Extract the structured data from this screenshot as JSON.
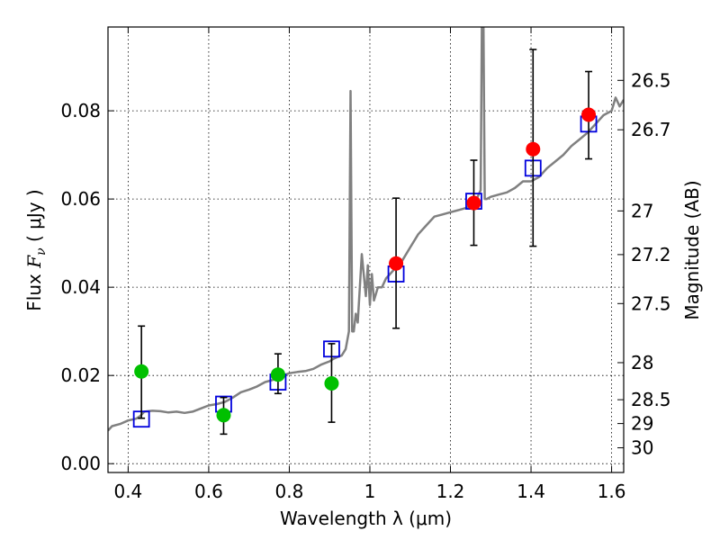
{
  "chart_data": {
    "type": "scatter",
    "xlabel": "Wavelength  λ (μm)",
    "ylabel": "Flux  F_ν  ( μJy )",
    "ylabel_parts": {
      "prefix": "Flux  ",
      "symbol": "F",
      "subscript": "ν",
      "suffix": "  ( μJy )"
    },
    "y2label": "Magnitude (AB)",
    "xlim": [
      0.35,
      1.63
    ],
    "ylim": [
      -0.002,
      0.099
    ],
    "grid": true,
    "x_ticks": [
      0.4,
      0.6,
      0.8,
      1.0,
      1.2,
      1.4,
      1.6
    ],
    "x_tick_labels": [
      "0.4",
      "0.6",
      "0.8",
      "1",
      "1.2",
      "1.4",
      "1.6"
    ],
    "y_ticks": [
      0.0,
      0.02,
      0.04,
      0.06,
      0.08
    ],
    "y_tick_labels": [
      "0.00",
      "0.02",
      "0.04",
      "0.06",
      "0.08"
    ],
    "y2_ticks": [
      {
        "flux": 0.0869,
        "label": "26.5"
      },
      {
        "flux": 0.0757,
        "label": "26.7"
      },
      {
        "flux": 0.0573,
        "label": "27"
      },
      {
        "flux": 0.0474,
        "label": "27.2"
      },
      {
        "flux": 0.0363,
        "label": "27.5"
      },
      {
        "flux": 0.0229,
        "label": "28"
      },
      {
        "flux": 0.0145,
        "label": "28.5"
      },
      {
        "flux": 0.0091,
        "label": "29"
      },
      {
        "flux": 0.0036,
        "label": "30"
      }
    ],
    "series": [
      {
        "kind": "line",
        "color": "#808080",
        "x": [
          0.35,
          0.36,
          0.38,
          0.4,
          0.42,
          0.43,
          0.44,
          0.46,
          0.48,
          0.5,
          0.52,
          0.54,
          0.56,
          0.58,
          0.6,
          0.62,
          0.64,
          0.66,
          0.68,
          0.7,
          0.72,
          0.74,
          0.76,
          0.78,
          0.8,
          0.82,
          0.84,
          0.86,
          0.88,
          0.9,
          0.91,
          0.92,
          0.93,
          0.94,
          0.948,
          0.952,
          0.956,
          0.96,
          0.965,
          0.97,
          0.98,
          0.99,
          0.995,
          1.0,
          1.005,
          1.01,
          1.02,
          1.03,
          1.04,
          1.05,
          1.06,
          1.07,
          1.08,
          1.1,
          1.12,
          1.14,
          1.16,
          1.18,
          1.2,
          1.22,
          1.24,
          1.26,
          1.27,
          1.275,
          1.278,
          1.28,
          1.282,
          1.285,
          1.29,
          1.3,
          1.32,
          1.34,
          1.36,
          1.38,
          1.4,
          1.42,
          1.44,
          1.46,
          1.48,
          1.5,
          1.52,
          1.54,
          1.56,
          1.58,
          1.6,
          1.61,
          1.62,
          1.63
        ],
        "y": [
          0.0075,
          0.0085,
          0.009,
          0.0098,
          0.0102,
          0.0108,
          0.0118,
          0.012,
          0.0119,
          0.0116,
          0.0118,
          0.0115,
          0.0118,
          0.0125,
          0.0132,
          0.0135,
          0.014,
          0.015,
          0.0162,
          0.0168,
          0.0175,
          0.0185,
          0.019,
          0.0198,
          0.0205,
          0.0208,
          0.021,
          0.0215,
          0.0225,
          0.0232,
          0.0238,
          0.0242,
          0.0245,
          0.026,
          0.03,
          0.0845,
          0.03,
          0.03,
          0.034,
          0.032,
          0.0475,
          0.038,
          0.045,
          0.036,
          0.043,
          0.037,
          0.04,
          0.04,
          0.042,
          0.043,
          0.044,
          0.045,
          0.046,
          0.049,
          0.052,
          0.054,
          0.056,
          0.0565,
          0.057,
          0.0575,
          0.058,
          0.059,
          0.061,
          0.062,
          0.099,
          0.099,
          0.099,
          0.06,
          0.06,
          0.0605,
          0.061,
          0.0615,
          0.0625,
          0.064,
          0.064,
          0.065,
          0.067,
          0.0685,
          0.07,
          0.072,
          0.0735,
          0.075,
          0.077,
          0.079,
          0.08,
          0.083,
          0.081,
          0.0825
        ]
      },
      {
        "kind": "markers",
        "marker": "square",
        "color": "#0000dd",
        "x": [
          0.433,
          0.637,
          0.772,
          0.905,
          1.065,
          1.258,
          1.405,
          1.543
        ],
        "y": [
          0.0101,
          0.0135,
          0.0185,
          0.026,
          0.043,
          0.0595,
          0.067,
          0.077
        ]
      },
      {
        "kind": "errorbar",
        "marker": "circle",
        "x": [
          0.433,
          0.637,
          0.772,
          0.905,
          1.065,
          1.258,
          1.405,
          1.543
        ],
        "y": [
          0.0209,
          0.011,
          0.0202,
          0.0182,
          0.0454,
          0.0591,
          0.0713,
          0.0791
        ],
        "yerr_low": [
          0.0106,
          0.0043,
          0.0043,
          0.0088,
          0.0147,
          0.0096,
          0.022,
          0.01
        ],
        "yerr_high": [
          0.0103,
          0.004,
          0.0047,
          0.009,
          0.0148,
          0.0097,
          0.0226,
          0.0098
        ],
        "colors": [
          "#00c000",
          "#00c000",
          "#00c000",
          "#00c000",
          "#ff0000",
          "#ff0000",
          "#ff0000",
          "#ff0000"
        ]
      }
    ]
  }
}
